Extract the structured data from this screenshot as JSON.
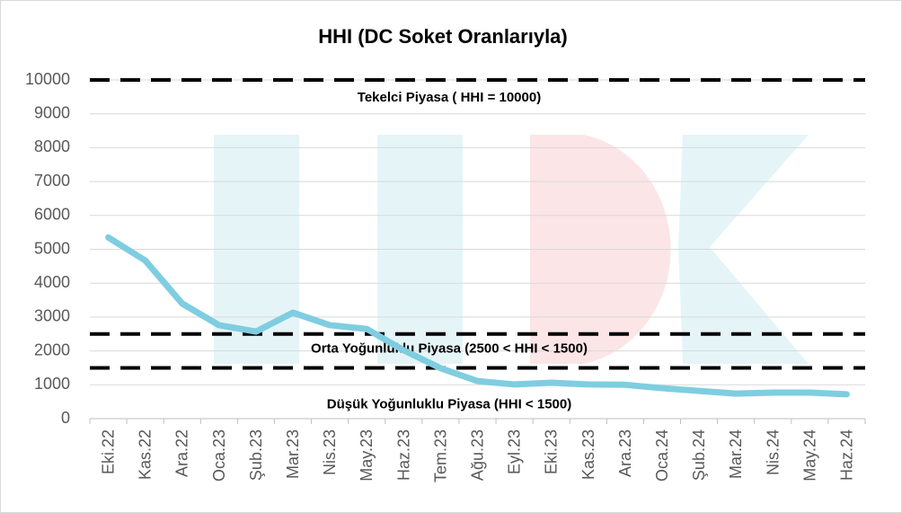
{
  "chart_data": {
    "type": "line",
    "title": "HHI (DC Soket Oranlarıyla)",
    "categories": [
      "Eki.22",
      "Kas.22",
      "Ara.22",
      "Oca.23",
      "Şub.23",
      "Mar.23",
      "Nis.23",
      "May.23",
      "Haz.23",
      "Tem.23",
      "Ağu.23",
      "Eyl.23",
      "Eki.23",
      "Kas.23",
      "Ara.23",
      "Oca.24",
      "Şub.24",
      "Mar.24",
      "Nis.24",
      "May.24",
      "Haz.24"
    ],
    "series": [
      {
        "name": "HHI",
        "color": "#7fcde0",
        "values": [
          5350,
          4670,
          3400,
          2760,
          2570,
          3130,
          2760,
          2650,
          2020,
          1490,
          1110,
          1010,
          1060,
          1010,
          1000,
          900,
          820,
          740,
          770,
          770,
          720
        ]
      }
    ],
    "reference_lines": [
      {
        "value": 10000,
        "label": "Tekelci Piyasa ( HHI = 10000)"
      },
      {
        "value": 2500,
        "label": "Orta Yoğunluklu Piyasa (2500 < HHI < 1500)"
      },
      {
        "value": 1500,
        "label": "Düşük Yoğunluklu Piyasa (HHI < 1500)"
      }
    ],
    "ylim": [
      0,
      10000
    ],
    "yticks": [
      0,
      1000,
      2000,
      3000,
      4000,
      5000,
      6000,
      7000,
      8000,
      9000,
      10000
    ],
    "grid": true
  }
}
